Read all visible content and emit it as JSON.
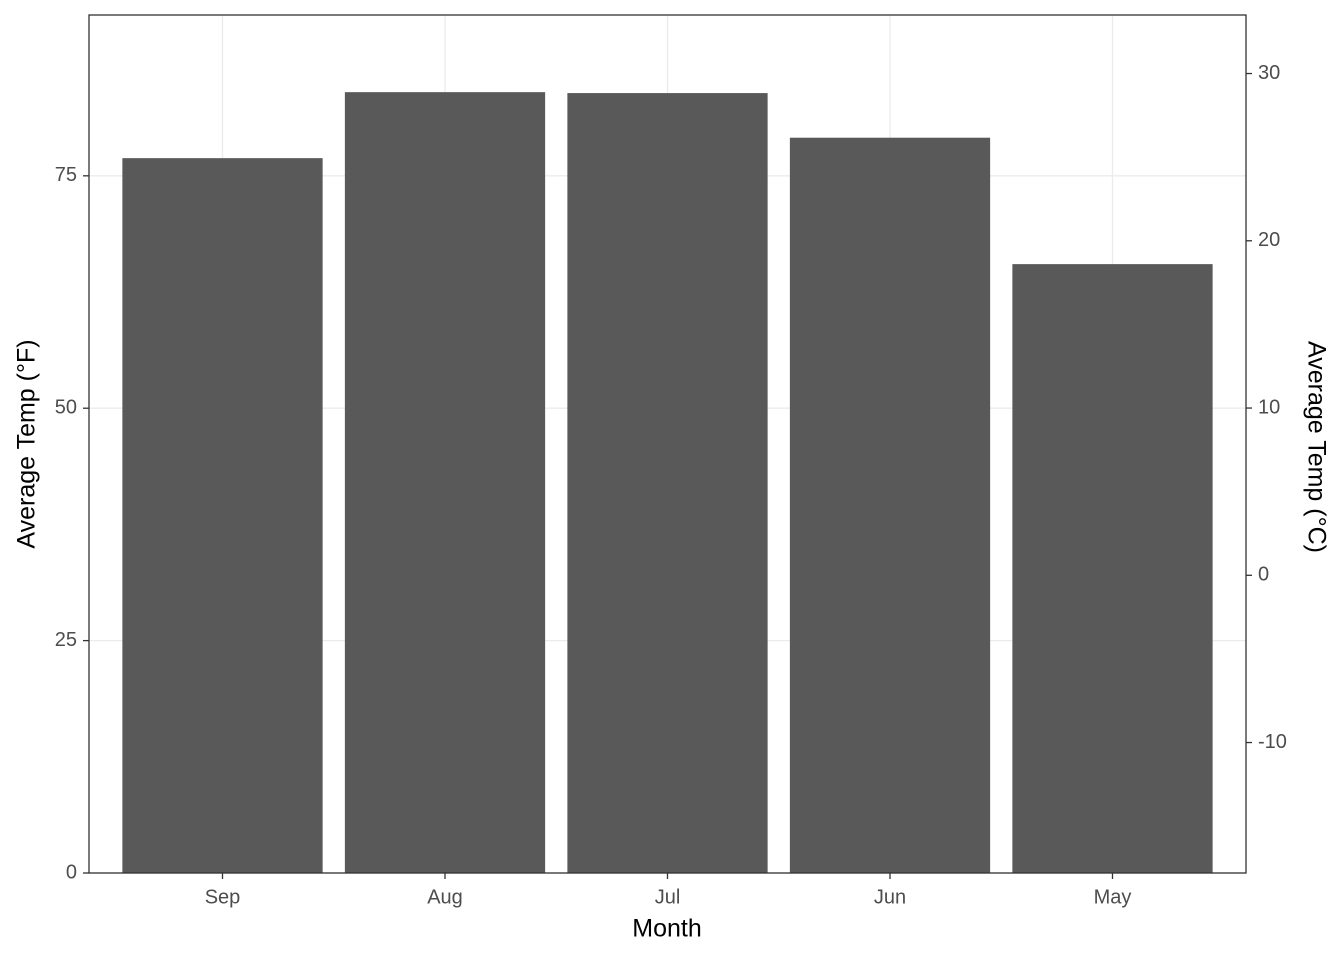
{
  "chart_data": {
    "type": "bar",
    "x_label": "Month",
    "y_label": "Average Temp (°F)",
    "y2_label": "Average Temp (°C)",
    "categories": [
      "Sep",
      "Aug",
      "Jul",
      "Jun",
      "May"
    ],
    "values": [
      76.9,
      84.0,
      83.9,
      79.1,
      65.5
    ],
    "color": "#595959",
    "ylim": [
      0,
      92.3
    ],
    "yticks": [
      0,
      25,
      50,
      75
    ],
    "y2lim": [
      -17.8,
      33.5
    ],
    "y2ticks": [
      -10,
      0,
      10,
      20,
      30
    ],
    "grid": true
  }
}
